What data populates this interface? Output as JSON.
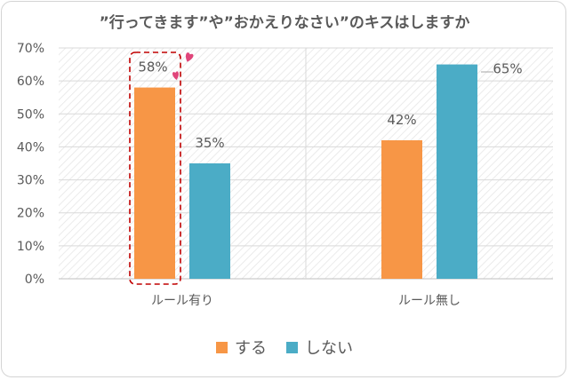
{
  "chart_data": {
    "type": "bar",
    "title": "”行ってきます”や”おかえりなさい”のキスはしますか",
    "categories": [
      "ルール有り",
      "ルール無し"
    ],
    "series": [
      {
        "name": "する",
        "values": [
          58,
          42
        ],
        "labels": [
          "58%",
          "42%"
        ],
        "color": "#F79646"
      },
      {
        "name": "しない",
        "values": [
          35,
          65
        ],
        "labels": [
          "35%",
          "65%"
        ],
        "color": "#4BACC6"
      }
    ],
    "yticks": [
      "0%",
      "10%",
      "20%",
      "30%",
      "40%",
      "50%",
      "60%",
      "70%"
    ],
    "ylim": [
      0,
      70
    ],
    "grid": true,
    "legend": "bottom",
    "highlight": {
      "category": "ルール有り",
      "series": "する",
      "style": "dashed red outline",
      "color": "#C00000"
    },
    "accent_colors": {
      "hearts": "#E0457A"
    }
  }
}
